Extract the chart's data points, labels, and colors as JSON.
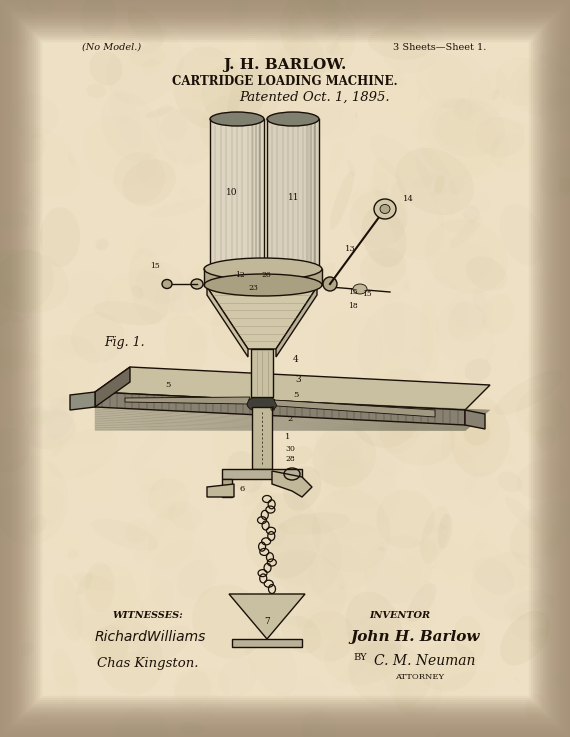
{
  "bg_color_top": "#f0e8d5",
  "bg_color_bot": "#d4c8a8",
  "parchment_color": "#ede0c4",
  "text_color": "#1a1008",
  "dark_line": "#1a1008",
  "title_line1": "J. H. BARLOW.",
  "title_line2": "CARTRIDGE LOADING MACHINE.",
  "title_line3": "Patented Oct. 1, 1895.",
  "no_model": "(No Model.)",
  "sheets": "3 Sheets—Sheet 1.",
  "witnesses_label": "WITNESSES:",
  "witness1": "RichardWilliams",
  "witness2": "Chas Kingston.",
  "inventor_label": "INVENTOR",
  "inventor_name": "John H. Barlow",
  "by_label": "BY",
  "attorney_sig": "C. M. Neuman",
  "attorney_label": "ATTORNEY",
  "fig_label": "Fig. 1."
}
